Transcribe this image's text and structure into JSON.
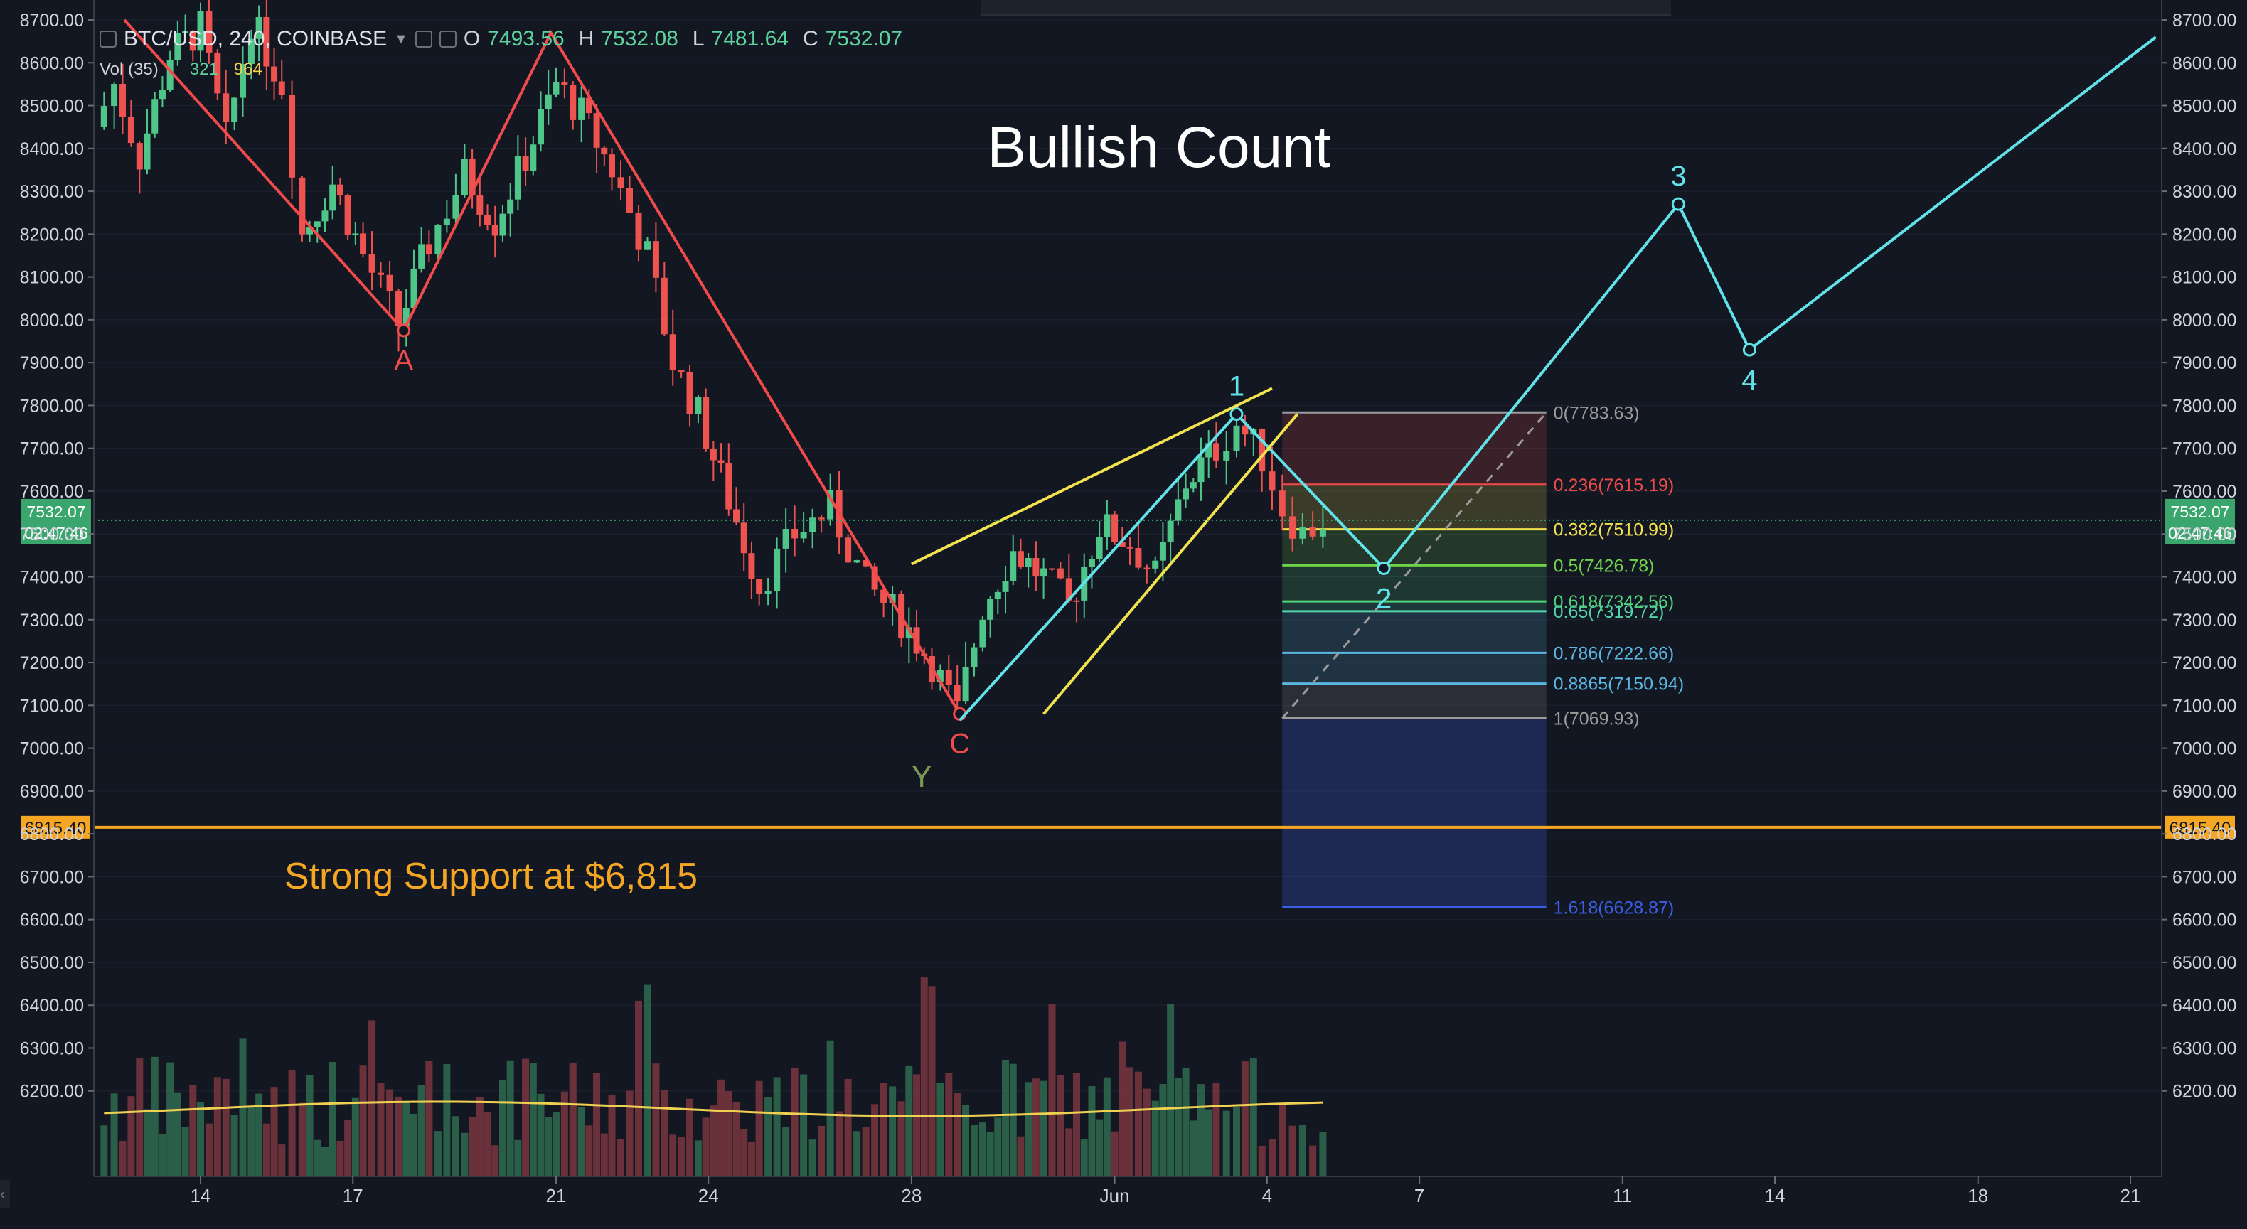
{
  "header": {
    "symbol": "BTC/USD, 240, COINBASE",
    "ohlc": [
      {
        "label": "O",
        "value": "7493.56"
      },
      {
        "label": "H",
        "value": "7532.08"
      },
      {
        "label": "L",
        "value": "7481.64"
      },
      {
        "label": "C",
        "value": "7532.07"
      }
    ],
    "volume_label": "Vol (35)",
    "volume_values": [
      "321",
      "964"
    ]
  },
  "chart_data": {
    "type": "candlestick",
    "title": "Bullish Count",
    "y_axis": {
      "min": 6100,
      "max": 8700,
      "ticks": [
        "8700.00",
        "8600.00",
        "8500.00",
        "8400.00",
        "8300.00",
        "8200.00",
        "8100.00",
        "8000.00",
        "7900.00",
        "7800.00",
        "7700.00",
        "7600.00",
        "7500.00",
        "7400.00",
        "7300.00",
        "7200.00",
        "7100.00",
        "7000.00",
        "6900.00",
        "6800.00",
        "6700.00",
        "6600.00",
        "6500.00",
        "6400.00",
        "6300.00",
        "6200.00"
      ]
    },
    "x_axis": {
      "ticks": [
        {
          "label": "14",
          "day": 0
        },
        {
          "label": "17",
          "day": 3
        },
        {
          "label": "21",
          "day": 7
        },
        {
          "label": "24",
          "day": 10
        },
        {
          "label": "28",
          "day": 14
        },
        {
          "label": "Jun",
          "day": 18
        },
        {
          "label": "4",
          "day": 21
        },
        {
          "label": "7",
          "day": 24
        },
        {
          "label": "11",
          "day": 28
        },
        {
          "label": "14",
          "day": 31
        },
        {
          "label": "18",
          "day": 35
        },
        {
          "label": "21",
          "day": 38
        }
      ]
    },
    "price_path": [
      {
        "day": -2.1,
        "price": 8450
      },
      {
        "day": -1.7,
        "price": 8550
      },
      {
        "day": -1.2,
        "price": 8380
      },
      {
        "day": -0.6,
        "price": 8620
      },
      {
        "day": 0.0,
        "price": 8680
      },
      {
        "day": 0.5,
        "price": 8420
      },
      {
        "day": 1.0,
        "price": 8700
      },
      {
        "day": 1.6,
        "price": 8550
      },
      {
        "day": 2.0,
        "price": 8200
      },
      {
        "day": 2.6,
        "price": 8320
      },
      {
        "day": 3.2,
        "price": 8150
      },
      {
        "day": 3.9,
        "price": 7990
      },
      {
        "day": 4.5,
        "price": 8180
      },
      {
        "day": 5.2,
        "price": 8340
      },
      {
        "day": 5.8,
        "price": 8230
      },
      {
        "day": 6.4,
        "price": 8380
      },
      {
        "day": 7.0,
        "price": 8550
      },
      {
        "day": 7.5,
        "price": 8480
      },
      {
        "day": 8.1,
        "price": 8350
      },
      {
        "day": 8.8,
        "price": 8150
      },
      {
        "day": 9.3,
        "price": 7900
      },
      {
        "day": 9.8,
        "price": 7780
      },
      {
        "day": 10.4,
        "price": 7580
      },
      {
        "day": 11.0,
        "price": 7380
      },
      {
        "day": 11.7,
        "price": 7500
      },
      {
        "day": 12.4,
        "price": 7560
      },
      {
        "day": 13.1,
        "price": 7380
      },
      {
        "day": 13.8,
        "price": 7300
      },
      {
        "day": 14.4,
        "price": 7200
      },
      {
        "day": 14.9,
        "price": 7080
      },
      {
        "day": 15.4,
        "price": 7330
      },
      {
        "day": 16.0,
        "price": 7460
      },
      {
        "day": 16.6,
        "price": 7400
      },
      {
        "day": 17.1,
        "price": 7330
      },
      {
        "day": 17.7,
        "price": 7520
      },
      {
        "day": 18.3,
        "price": 7480
      },
      {
        "day": 18.8,
        "price": 7400
      },
      {
        "day": 19.4,
        "price": 7620
      },
      {
        "day": 20.0,
        "price": 7700
      },
      {
        "day": 20.4,
        "price": 7760
      },
      {
        "day": 20.9,
        "price": 7680
      },
      {
        "day": 21.3,
        "price": 7560
      },
      {
        "day": 21.7,
        "price": 7500
      },
      {
        "day": 22.1,
        "price": 7532
      }
    ],
    "moving_average_volume": "MA overlay",
    "waves": {
      "abc": {
        "color": "#ef4b4b",
        "points": [
          {
            "day": -1.5,
            "price": 8700,
            "label": ""
          },
          {
            "day": 4.0,
            "price": 7975,
            "label": "A"
          },
          {
            "day": 6.9,
            "price": 8670,
            "label": ""
          },
          {
            "day": 14.95,
            "price": 7080,
            "label": "C"
          }
        ]
      },
      "y_label": {
        "text": "Y",
        "day": 14.2,
        "price": 6910,
        "color": "#7a9a52"
      },
      "impulse": {
        "color": "#61e2e9",
        "points": [
          {
            "day": 14.95,
            "price": 7065,
            "label": ""
          },
          {
            "day": 20.4,
            "price": 7780,
            "label": "1"
          },
          {
            "day": 23.3,
            "price": 7420,
            "label": "2"
          },
          {
            "day": 29.1,
            "price": 8270,
            "label": "3"
          },
          {
            "day": 30.5,
            "price": 7930,
            "label": "4"
          },
          {
            "day": 38.5,
            "price": 8660,
            "label": ""
          }
        ]
      },
      "wedge": {
        "color": "#f2e24e",
        "lines": [
          {
            "from": {
              "day": 14.0,
              "price": 7430
            },
            "to": {
              "day": 21.1,
              "price": 7840
            }
          },
          {
            "from": {
              "day": 16.6,
              "price": 7080
            },
            "to": {
              "day": 21.6,
              "price": 7780
            }
          }
        ]
      }
    },
    "fibonacci": {
      "start_day": 21.3,
      "end_day": 26.5,
      "levels": [
        {
          "ratio": "0",
          "price": 7783.63,
          "label": "0(7783.63)",
          "color": "#9b9b9b"
        },
        {
          "ratio": "0.236",
          "price": 7615.19,
          "label": "0.236(7615.19)",
          "color": "#ef4b4b"
        },
        {
          "ratio": "0.382",
          "price": 7510.99,
          "label": "0.382(7510.99)",
          "color": "#f2e24e"
        },
        {
          "ratio": "0.5",
          "price": 7426.78,
          "label": "0.5(7426.78)",
          "color": "#6fd24a"
        },
        {
          "ratio": "0.618",
          "price": 7342.56,
          "label": "0.618(7342.56)",
          "color": "#52d27a"
        },
        {
          "ratio": "0.65",
          "price": 7319.72,
          "label": "0.65(7319.72)",
          "color": "#52d2a8"
        },
        {
          "ratio": "0.786",
          "price": 7222.66,
          "label": "0.786(7222.66)",
          "color": "#5ab6e0"
        },
        {
          "ratio": "0.8865",
          "price": 7150.94,
          "label": "0.8865(7150.94)",
          "color": "#5ab6e0"
        },
        {
          "ratio": "1",
          "price": 7069.93,
          "label": "1(7069.93)",
          "color": "#9b9b9b"
        },
        {
          "ratio": "1.618",
          "price": 6628.87,
          "label": "1.618(6628.87)",
          "color": "#3a5ee8"
        }
      ]
    },
    "support": {
      "price": 6815.4,
      "label": "6815.40",
      "text": "Strong Support at $6,815",
      "color": "#f5a623"
    },
    "current_price": {
      "price": 7532.07,
      "label": "7532.07",
      "countdown": "02:47:46",
      "color": "#3aa66e"
    }
  }
}
